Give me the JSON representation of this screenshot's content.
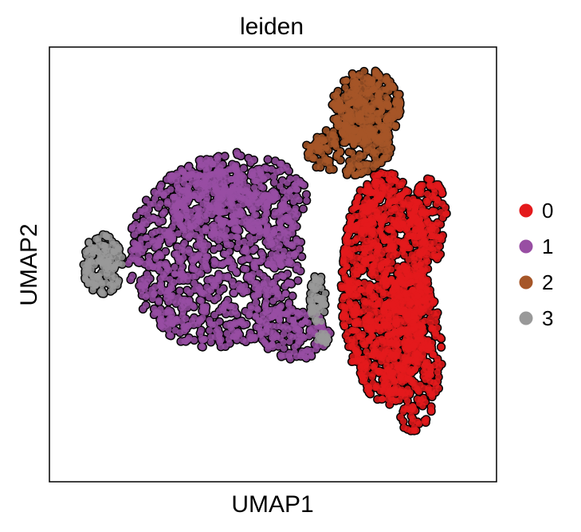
{
  "chart_data": {
    "type": "scatter",
    "title": "leiden",
    "xlabel": "UMAP1",
    "ylabel": "UMAP2",
    "xlim": [
      0,
      100
    ],
    "ylim": [
      0,
      100
    ],
    "grid": false,
    "ticks": false,
    "legend_placement": "right",
    "point_outline": "#000000",
    "series": [
      {
        "name": "0",
        "color": "#e41a1c",
        "regions": [
          {
            "cx": 75.0,
            "cy": 45.0,
            "rx": 10.0,
            "ry": 27.0,
            "n": 1000
          },
          {
            "cx": 81.0,
            "cy": 30.0,
            "rx": 7.0,
            "ry": 19.0,
            "n": 300
          },
          {
            "cx": 85.0,
            "cy": 60.0,
            "rx": 4.0,
            "ry": 10.0,
            "n": 120
          }
        ]
      },
      {
        "name": "1",
        "color": "#984ea3",
        "regions": [
          {
            "cx": 37.0,
            "cy": 52.0,
            "rx": 20.0,
            "ry": 22.0,
            "n": 950
          },
          {
            "cx": 42.0,
            "cy": 66.0,
            "rx": 16.0,
            "ry": 10.0,
            "n": 260
          },
          {
            "cx": 55.0,
            "cy": 34.0,
            "rx": 8.0,
            "ry": 6.0,
            "n": 120
          }
        ]
      },
      {
        "name": "2",
        "color": "#a65628",
        "regions": [
          {
            "cx": 71.0,
            "cy": 86.0,
            "rx": 8.0,
            "ry": 9.0,
            "n": 320
          },
          {
            "cx": 67.0,
            "cy": 76.0,
            "rx": 10.0,
            "ry": 6.0,
            "n": 180
          }
        ]
      },
      {
        "name": "3",
        "color": "#999999",
        "regions": [
          {
            "cx": 12.0,
            "cy": 50.0,
            "rx": 5.0,
            "ry": 7.0,
            "n": 130
          },
          {
            "cx": 60.0,
            "cy": 42.0,
            "rx": 1.8,
            "ry": 6.0,
            "n": 55
          },
          {
            "cx": 61.0,
            "cy": 33.0,
            "rx": 1.5,
            "ry": 2.0,
            "n": 18
          }
        ]
      }
    ]
  }
}
